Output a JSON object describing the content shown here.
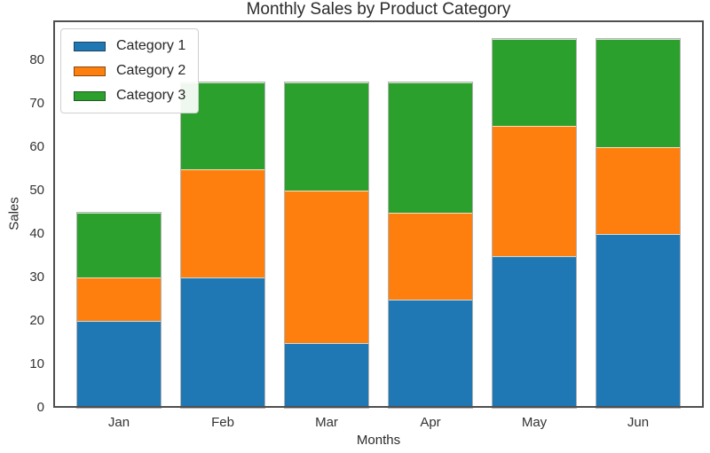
{
  "chart_data": {
    "type": "bar",
    "stacked": true,
    "title": "Monthly Sales by Product Category",
    "xlabel": "Months",
    "ylabel": "Sales",
    "categories": [
      "Jan",
      "Feb",
      "Mar",
      "Apr",
      "May",
      "Jun"
    ],
    "series": [
      {
        "name": "Category 1",
        "color": "#1f77b4",
        "values": [
          20,
          30,
          15,
          25,
          35,
          40
        ]
      },
      {
        "name": "Category 2",
        "color": "#ff7f0e",
        "values": [
          10,
          25,
          35,
          20,
          30,
          20
        ]
      },
      {
        "name": "Category 3",
        "color": "#2ca02c",
        "values": [
          15,
          20,
          25,
          30,
          20,
          25
        ]
      }
    ],
    "totals": [
      45,
      75,
      75,
      75,
      85,
      85
    ],
    "yticks": [
      0,
      10,
      20,
      30,
      40,
      50,
      60,
      70,
      80
    ],
    "ylim": [
      0,
      89.25
    ],
    "grid": false,
    "legend_position": "upper-left"
  }
}
